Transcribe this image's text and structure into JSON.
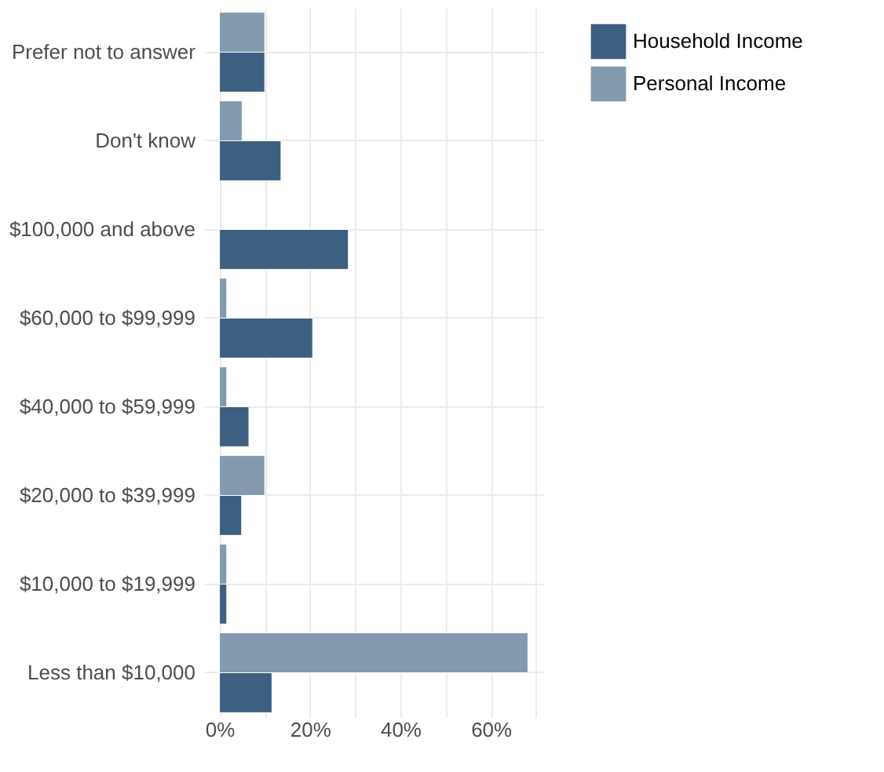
{
  "chart_data": {
    "type": "bar",
    "orientation": "horizontal",
    "categories": [
      "Prefer not to answer",
      "Don't know",
      "$100,000 and above",
      "$60,000 to $99,999",
      "$40,000 to $59,999",
      "$20,000 to $39,999",
      "$10,000 to $19,999",
      "Less than $10,000"
    ],
    "series": [
      {
        "name": "Household Income",
        "color": "#3d5f80",
        "values": [
          10,
          13.6,
          28.5,
          20.6,
          6.5,
          4.9,
          1.6,
          11.6
        ]
      },
      {
        "name": "Personal Income",
        "color": "#8399ae",
        "values": [
          10,
          5,
          null,
          1.6,
          1.6,
          10,
          1.6,
          68.2
        ]
      }
    ],
    "xlim": [
      -3.4,
      71.6
    ],
    "xticks": [
      {
        "value": 0,
        "label": "0%"
      },
      {
        "value": 10,
        "label": null
      },
      {
        "value": 20,
        "label": "20%"
      },
      {
        "value": 30,
        "label": null
      },
      {
        "value": 40,
        "label": "40%"
      },
      {
        "value": 50,
        "label": null
      },
      {
        "value": 60,
        "label": "60%"
      },
      {
        "value": 70,
        "label": null
      }
    ],
    "grid": true,
    "legend": "right"
  }
}
